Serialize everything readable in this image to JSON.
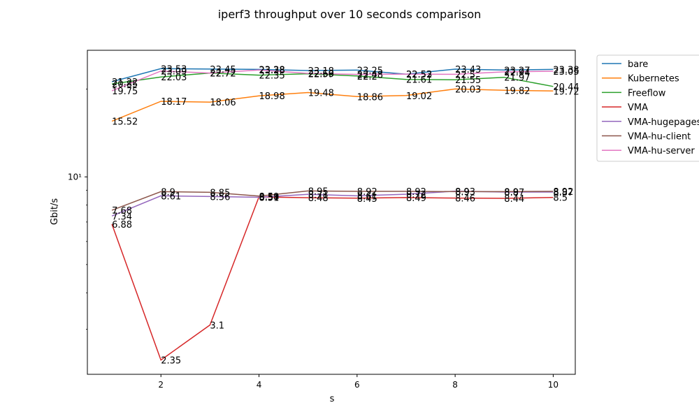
{
  "chart_data": {
    "type": "line",
    "title": "iperf3 throughput over 10 seconds comparison",
    "xlabel": "s",
    "ylabel": "Gbit/s",
    "yscale": "log",
    "xlim": [
      0.5,
      10.45
    ],
    "ylim": [
      2.1,
      27.2
    ],
    "xticks": [
      2,
      4,
      6,
      8,
      10
    ],
    "yticks": [
      10
    ],
    "ytick_labels": [
      "10¹"
    ],
    "grid": false,
    "legend_position": "outside-right",
    "x": [
      1,
      2,
      3,
      4,
      5,
      6,
      7,
      8,
      9,
      10
    ],
    "series": [
      {
        "name": "bare",
        "color": "#1f77b4",
        "values": [
          21.22,
          23.53,
          23.45,
          23.38,
          23.18,
          23.25,
          22.52,
          23.43,
          23.27,
          23.38
        ]
      },
      {
        "name": "Kubernetes",
        "color": "#ff7f0e",
        "values": [
          15.52,
          18.17,
          18.06,
          18.98,
          19.48,
          18.86,
          19.02,
          20.03,
          19.82,
          19.72
        ]
      },
      {
        "name": "Freeflow",
        "color": "#2ca02c",
        "values": [
          20.85,
          22.03,
          22.72,
          22.35,
          22.59,
          22.2,
          21.61,
          21.55,
          21.97,
          20.44
        ]
      },
      {
        "name": "VMA",
        "color": "#d62728",
        "values": [
          6.88,
          2.35,
          3.1,
          8.54,
          8.48,
          8.45,
          8.49,
          8.46,
          8.44,
          8.5
        ]
      },
      {
        "name": "VMA-hugepages",
        "color": "#9467bd",
        "values": [
          7.34,
          8.61,
          8.56,
          8.51,
          8.71,
          8.61,
          8.72,
          8.93,
          8.87,
          8.87
        ]
      },
      {
        "name": "VMA-hu-client",
        "color": "#8c564b",
        "values": [
          7.68,
          8.9,
          8.85,
          8.59,
          8.95,
          8.92,
          8.92,
          8.9,
          8.9,
          8.92
        ]
      },
      {
        "name": "VMA-hu-server",
        "color": "#e377c2",
        "values": [
          19.75,
          23.09,
          22.72,
          23.28,
          22.66,
          22.48,
          22.53,
          22.5,
          22.94,
          23.05
        ]
      }
    ]
  }
}
